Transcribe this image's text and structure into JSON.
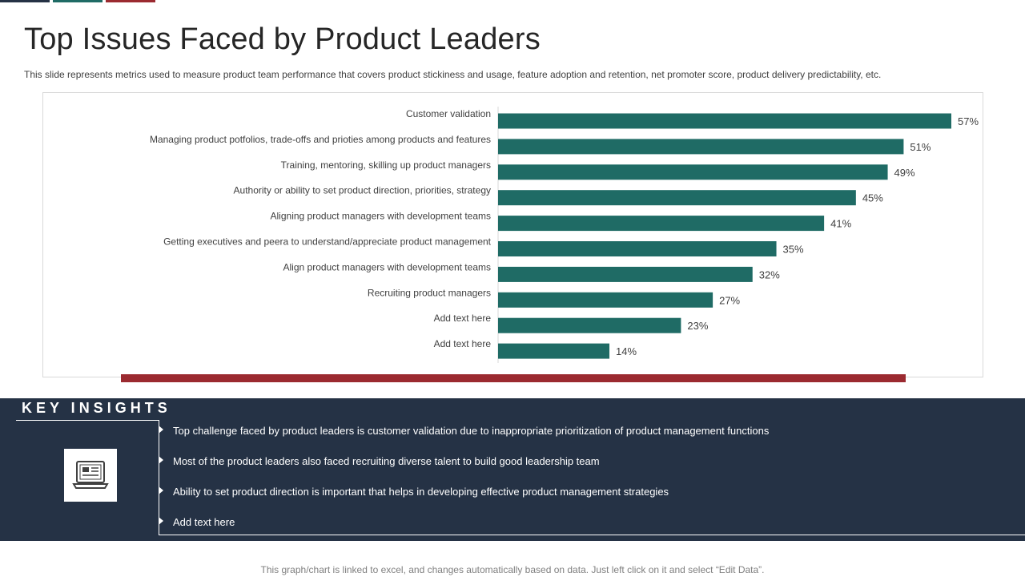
{
  "slide": {
    "title": "Top Issues Faced by Product Leaders",
    "subtitle": "This slide represents metrics used to measure product team performance that covers product stickiness and usage, feature adoption and retention, net promoter score, product delivery predictability, etc.",
    "footer_note": "This graph/chart is linked to excel,  and changes automatically based on data. Just left click on it and select “Edit Data”."
  },
  "colors": {
    "bar": "#1f6b65",
    "accent_navy": "#253245",
    "accent_teal": "#1f6b65",
    "accent_red": "#9b2a30",
    "panel_bg": "#253245"
  },
  "chart_data": {
    "type": "bar",
    "orientation": "horizontal",
    "title": "",
    "xlabel": "",
    "ylabel": "",
    "xlim": [
      0,
      60
    ],
    "grid": false,
    "value_suffix": "%",
    "categories": [
      "Customer validation",
      "Managing product potfolios, trade-offs and prioties among products and features",
      "Training, mentoring, skilling up product managers",
      "Authority or ability to set product direction, priorities, strategy",
      "Aligning product managers with development teams",
      "Getting executives and peera to understand/appreciate product management",
      "Align product managers with development teams",
      "Recruiting product managers",
      "Add text here",
      "Add text here"
    ],
    "values": [
      57,
      51,
      49,
      45,
      41,
      35,
      32,
      27,
      23,
      14
    ]
  },
  "insights": {
    "heading": "KEY INSIGHTS",
    "icon": "laptop-icon",
    "items": [
      "Top challenge  faced  by product leaders  is customer validation  due to inappropriate  prioritization  of product  management  functions",
      "Most of the product leaders  also faced  recruiting diverse  talent to build good leadership team",
      "Ability to set product  direction  is important that helps in developing  effective  product  management  strategies",
      "Add text here"
    ]
  }
}
